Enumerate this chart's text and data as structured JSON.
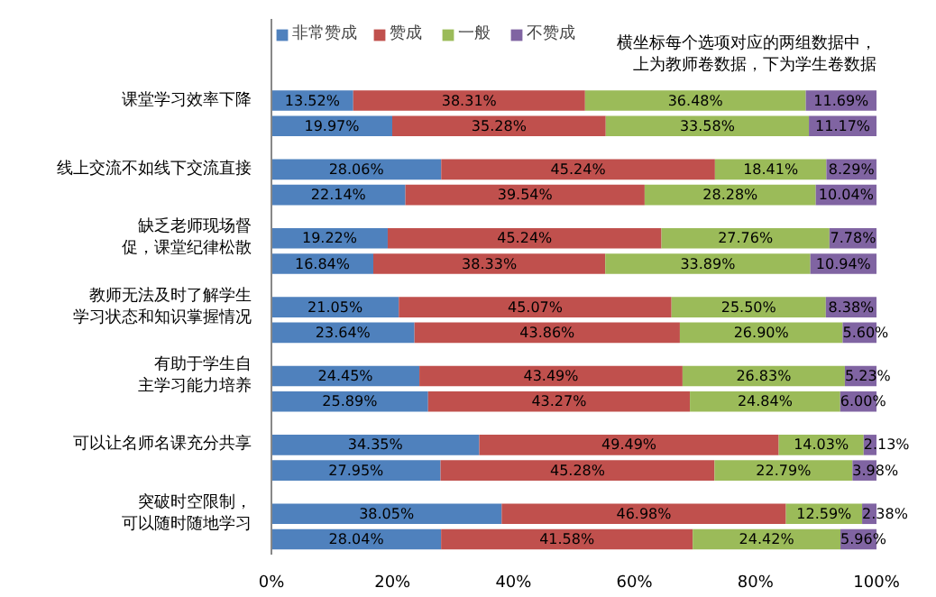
{
  "chart_data": {
    "type": "bar",
    "orientation": "horizontal",
    "stacked": true,
    "categories": [
      "课堂学习效率下降",
      null,
      "线上交流不如线下交流直接",
      null,
      "缺乏老师现场督促，课堂纪律松散",
      null,
      "教师无法及时了解学生学习状态和知识掌握情况",
      null,
      "有助于学生自主学习能力培养",
      null,
      "可以让名师名课充分共享",
      null,
      "突破时空限制，可以随时随地学习",
      null
    ],
    "series": [
      {
        "name": "非常赞成",
        "color": "#4f81bd",
        "values": [
          13.52,
          19.97,
          28.06,
          22.14,
          19.22,
          16.84,
          21.05,
          23.64,
          24.45,
          25.89,
          34.35,
          27.95,
          38.05,
          28.04
        ],
        "value_labels": [
          "13.52%",
          "19.97%",
          "28.06%",
          "22.14%",
          "19.22%",
          "16.84%",
          "21.05%",
          "23.64%",
          "24.45%",
          "25.89%",
          "34.35%",
          "27.95%",
          "38.05%",
          "28.04%"
        ]
      },
      {
        "name": "赞成",
        "color": "#c0504d",
        "values": [
          38.31,
          35.28,
          45.24,
          39.54,
          45.24,
          38.33,
          45.07,
          43.86,
          43.49,
          43.27,
          49.49,
          45.28,
          46.98,
          41.58
        ],
        "value_labels": [
          "38.31%",
          "35.28%",
          "45.24%",
          "39.54%",
          "45.24%",
          "38.33%",
          "45.07%",
          "43.86%",
          "43.49%",
          "43.27%",
          "49.49%",
          "45.28%",
          "46.98%",
          "41.58%"
        ]
      },
      {
        "name": "一般",
        "color": "#9bbb59",
        "values": [
          36.48,
          33.58,
          18.41,
          28.28,
          27.76,
          33.89,
          25.5,
          26.9,
          26.83,
          24.84,
          14.03,
          22.79,
          12.59,
          24.42
        ],
        "value_labels": [
          "36.48%",
          "33.58%",
          "18.41%",
          "28.28%",
          "27.76%",
          "33.89%",
          "25.50%",
          "26.90%",
          "26.83%",
          "24.84%",
          "14.03%",
          "22.79%",
          "12.59%",
          "24.42%"
        ]
      },
      {
        "name": "不赞成",
        "color": "#8064a2",
        "values": [
          11.69,
          11.17,
          8.29,
          10.04,
          7.78,
          10.94,
          8.38,
          5.6,
          5.23,
          6.0,
          2.13,
          3.98,
          2.38,
          5.96
        ],
        "value_labels": [
          "11.69%",
          "11.17%",
          "8.29%",
          "10.04%",
          "7.78%",
          "10.94%",
          "8.38%",
          "5.60%",
          "5.23%",
          "6.00%",
          "2.13%",
          "3.98%",
          "2.38%",
          "5.96%"
        ]
      }
    ],
    "xlim": [
      0,
      100
    ],
    "xticks": [
      {
        "value": 0,
        "label": "0%"
      },
      {
        "value": 20,
        "label": "20%"
      },
      {
        "value": 40,
        "label": "40%"
      },
      {
        "value": 60,
        "label": "60%"
      },
      {
        "value": 80,
        "label": "80%"
      },
      {
        "value": 100,
        "label": "100%"
      }
    ],
    "annotations": [
      "横坐标每个选项对应的两组数据中，上为教师卷数据，下为学生卷数据"
    ],
    "legend": "top left",
    "grid": false
  }
}
